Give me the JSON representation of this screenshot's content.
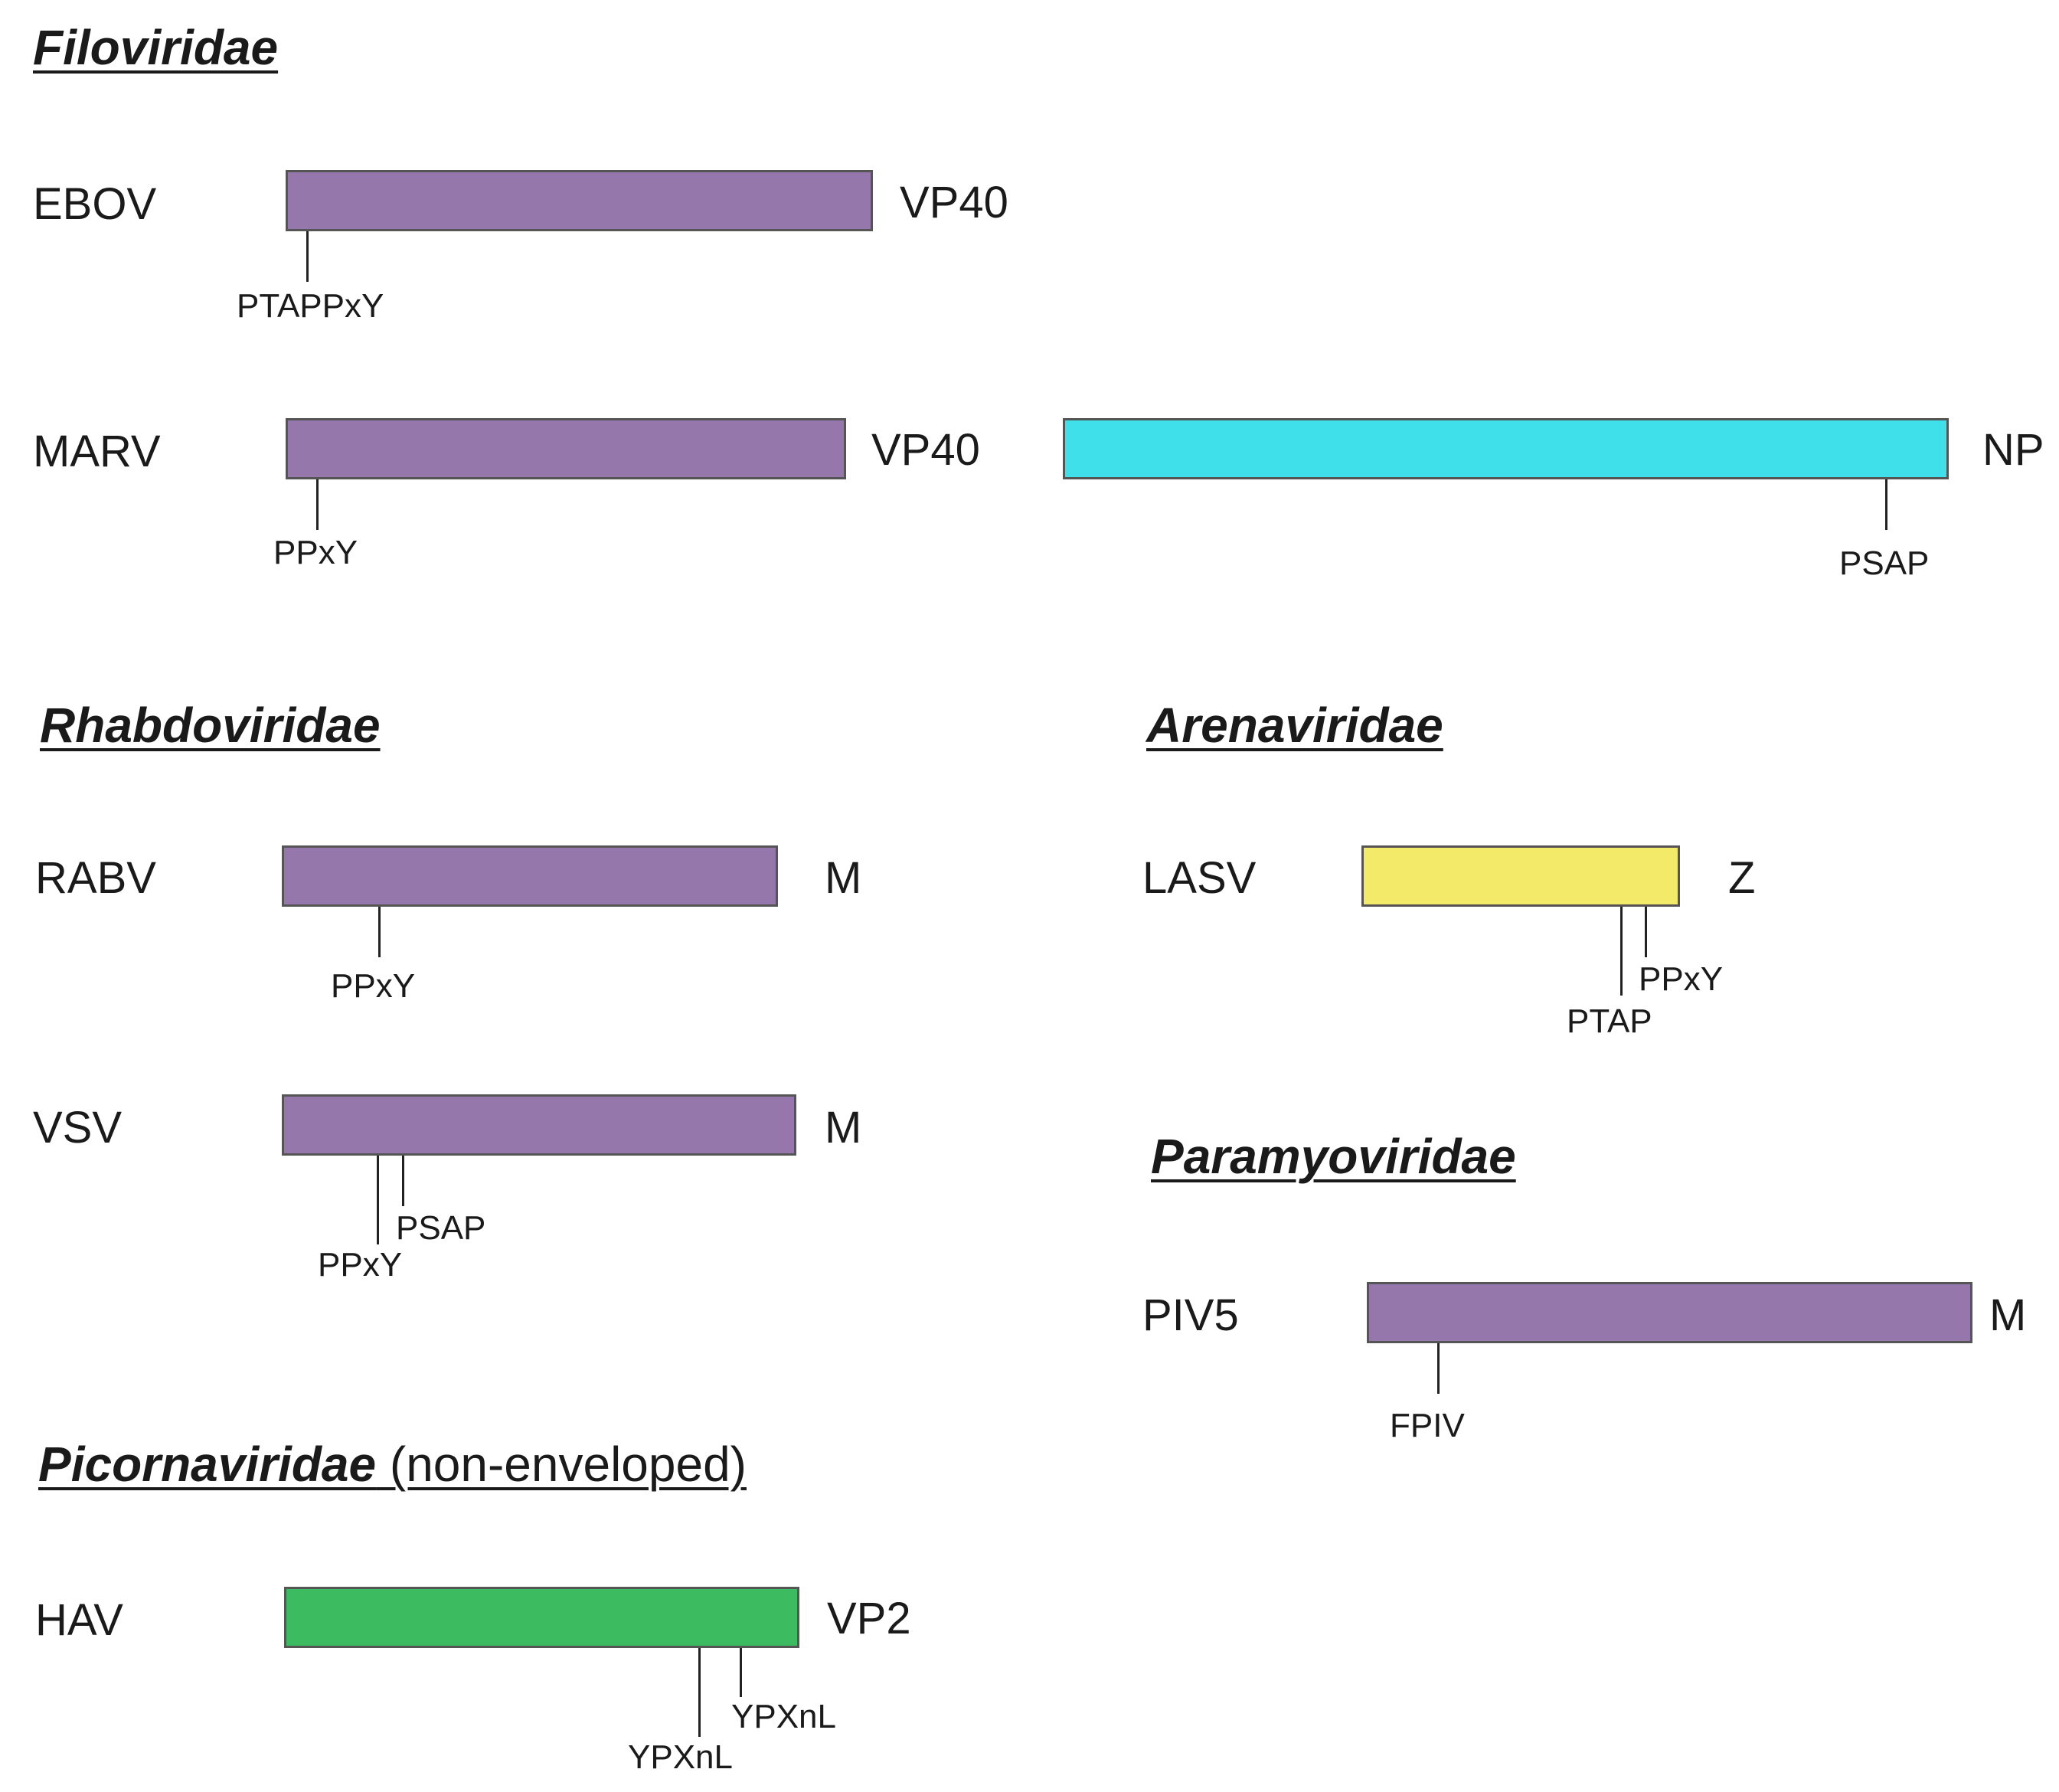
{
  "colors": {
    "matrix": "#9677ac",
    "nucleoprotein": "#40e0eb",
    "z_protein": "#f3ea6a",
    "capsid": "#3dbb61",
    "border": "#555555"
  },
  "families": {
    "filoviridae": {
      "name": "Filoviridae"
    },
    "rhabdoviridae": {
      "name": "Rhabdoviridae"
    },
    "arenaviridae": {
      "name": "Arenaviridae"
    },
    "paramyoviridae": {
      "name": "Paramyoviridae"
    },
    "picornaviridae": {
      "name": "Picornaviridae",
      "suffix": " (non-enveloped)"
    }
  },
  "viruses": {
    "ebov": {
      "name": "EBOV",
      "proteins": [
        {
          "label": "VP40",
          "motifs": [
            "PTAPPxY"
          ]
        }
      ]
    },
    "marv": {
      "name": "MARV",
      "proteins": [
        {
          "label": "VP40",
          "motifs": [
            "PPxY"
          ]
        },
        {
          "label": "NP",
          "motifs": [
            "PSAP"
          ]
        }
      ]
    },
    "rabv": {
      "name": "RABV",
      "proteins": [
        {
          "label": "M",
          "motifs": [
            "PPxY"
          ]
        }
      ]
    },
    "vsv": {
      "name": "VSV",
      "proteins": [
        {
          "label": "M",
          "motifs": [
            "PPxY",
            "PSAP"
          ]
        }
      ]
    },
    "lasv": {
      "name": "LASV",
      "proteins": [
        {
          "label": "Z",
          "motifs": [
            "PTAP",
            "PPxY"
          ]
        }
      ]
    },
    "piv5": {
      "name": "PIV5",
      "proteins": [
        {
          "label": "M",
          "motifs": [
            "FPIV"
          ]
        }
      ]
    },
    "hav": {
      "name": "HAV",
      "proteins": [
        {
          "label": "VP2",
          "motifs": [
            "YPXnL",
            "YPXnL"
          ]
        }
      ]
    }
  }
}
